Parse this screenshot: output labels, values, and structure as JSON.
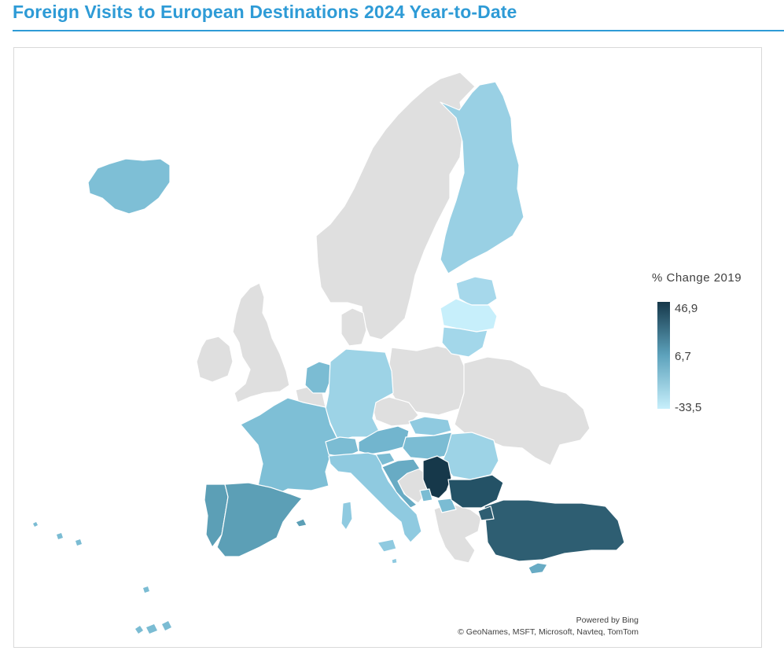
{
  "title": "Foreign Visits to European Destinations 2024 Year-to-Date",
  "legend": {
    "title": "% Change 2019",
    "max_label": "46,9",
    "mid_label": "6,7",
    "min_label": "-33,5",
    "color_max": "#16384a",
    "color_mid": "#5da2bc",
    "color_min": "#c7effb",
    "no_data_color": "#dfdfdf"
  },
  "attribution": {
    "powered_by": "Powered by Bing",
    "sources": "© GeoNames, MSFT, Microsoft, Navteq, TomTom"
  },
  "regions": {
    "iceland": {
      "name": "Iceland",
      "fill": "#7ebfd6"
    },
    "finland": {
      "name": "Finland",
      "fill": "#99d0e4"
    },
    "estonia": {
      "name": "Estonia",
      "fill": "#a6d8eb"
    },
    "latvia": {
      "name": "Latvia",
      "fill": "#c7effb"
    },
    "lithuania": {
      "name": "Lithuania",
      "fill": "#a3d7ea"
    },
    "netherlands": {
      "name": "Netherlands",
      "fill": "#7bbcd3"
    },
    "germany": {
      "name": "Germany",
      "fill": "#9dd3e6"
    },
    "france": {
      "name": "France",
      "fill": "#7ebfd6"
    },
    "spain": {
      "name": "Spain",
      "fill": "#5c9fb6"
    },
    "portugal": {
      "name": "Portugal",
      "fill": "#5c9fb6"
    },
    "italy": {
      "name": "Italy",
      "fill": "#8fcae0"
    },
    "switzerland": {
      "name": "Switzerland",
      "fill": "#7bbcd3"
    },
    "austria": {
      "name": "Austria",
      "fill": "#72b5ce"
    },
    "slovakia": {
      "name": "Slovakia",
      "fill": "#8fcae0"
    },
    "hungary": {
      "name": "Hungary",
      "fill": "#7bbcd3"
    },
    "slovenia": {
      "name": "Slovenia",
      "fill": "#7bbcd3"
    },
    "croatia": {
      "name": "Croatia",
      "fill": "#68abc4"
    },
    "romania": {
      "name": "Romania",
      "fill": "#9dd3e6"
    },
    "serbia": {
      "name": "Serbia",
      "fill": "#16384a"
    },
    "bulgaria": {
      "name": "Bulgaria",
      "fill": "#245266"
    },
    "turkey": {
      "name": "Türkiye",
      "fill": "#2e5e72"
    },
    "cyprus": {
      "name": "Cyprus",
      "fill": "#68abc4"
    },
    "montenegro": {
      "name": "Montenegro",
      "fill": "#7bbcd3"
    },
    "north_macedonia": {
      "name": "North Macedonia",
      "fill": "#7bbcd3"
    },
    "malta": {
      "name": "Malta",
      "fill": "#8fcae0"
    }
  }
}
